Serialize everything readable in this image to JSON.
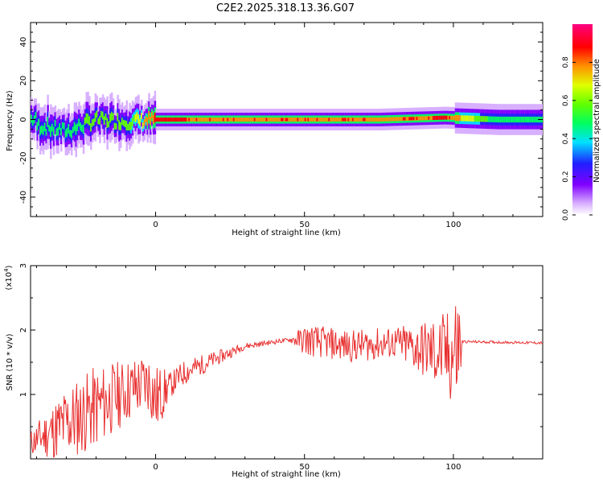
{
  "title": "C2E2.2025.318.13.36.G07",
  "chart_data": [
    {
      "type": "heatmap",
      "xlabel": "Height of straight line (km)",
      "ylabel": "Frequency (Hz)",
      "xlim": [
        -42,
        130
      ],
      "ylim": [
        -50,
        50
      ],
      "x_ticks": [
        0,
        50,
        100
      ],
      "y_ticks": [
        -40,
        -20,
        0,
        20,
        40
      ],
      "colorbar": {
        "label": "Normalized spectral amplitude",
        "range": [
          0,
          1
        ],
        "ticks": [
          "0.0",
          "0.2",
          "0.4",
          "0.6",
          "0.8"
        ],
        "colormap": "rainbow (white-violet-blue-cyan-green-yellow-orange-red-magenta)"
      },
      "description_points": [
        {
          "x": -40,
          "freq": -3,
          "amp": 0.5
        },
        {
          "x": -30,
          "freq": -6,
          "amp": 0.55
        },
        {
          "x": -20,
          "freq": 0,
          "amp": 0.6
        },
        {
          "x": -10,
          "freq": -1,
          "amp": 0.6
        },
        {
          "x": 0,
          "freq": 0,
          "amp": 0.9
        },
        {
          "x": 25,
          "freq": 0,
          "amp": 0.85
        },
        {
          "x": 50,
          "freq": 0,
          "amp": 0.85
        },
        {
          "x": 75,
          "freq": 0,
          "amp": 0.8
        },
        {
          "x": 97,
          "freq": 1,
          "amp": 0.9
        },
        {
          "x": 115,
          "freq": 0,
          "amp": 0.5
        },
        {
          "x": 130,
          "freq": 0,
          "amp": 0.5
        }
      ]
    },
    {
      "type": "line",
      "xlabel": "Height of straight line (km)",
      "ylabel": "SNR (10 * v/v)",
      "y_multiplier_label": "(x10",
      "y_multiplier_exp": "4",
      "xlim": [
        -42,
        130
      ],
      "ylim": [
        0,
        3
      ],
      "x_ticks": [
        0,
        50,
        100
      ],
      "y_ticks": [
        1,
        2,
        3
      ],
      "line_color": "#e83030",
      "series": [
        {
          "envelope": [
            {
              "x": -42,
              "mean": 0.25,
              "amp": 0.2
            },
            {
              "x": -30,
              "mean": 0.55,
              "amp": 0.6
            },
            {
              "x": -20,
              "mean": 0.8,
              "amp": 0.65
            },
            {
              "x": -10,
              "mean": 1.05,
              "amp": 0.5
            },
            {
              "x": -2,
              "mean": 1.2,
              "amp": 0.5
            },
            {
              "x": 0,
              "mean": 0.9,
              "amp": 0.6
            },
            {
              "x": 5,
              "mean": 1.15,
              "amp": 0.2
            },
            {
              "x": 10,
              "mean": 1.35,
              "amp": 0.2
            },
            {
              "x": 20,
              "mean": 1.55,
              "amp": 0.12
            },
            {
              "x": 30,
              "mean": 1.75,
              "amp": 0.05
            },
            {
              "x": 45,
              "mean": 1.85,
              "amp": 0.03
            },
            {
              "x": 50,
              "mean": 1.85,
              "amp": 0.25
            },
            {
              "x": 65,
              "mean": 1.75,
              "amp": 0.25
            },
            {
              "x": 80,
              "mean": 1.8,
              "amp": 0.25
            },
            {
              "x": 90,
              "mean": 1.7,
              "amp": 0.45
            },
            {
              "x": 98,
              "mean": 1.6,
              "amp": 0.7
            },
            {
              "x": 102,
              "mean": 1.7,
              "amp": 1.1
            },
            {
              "x": 103,
              "mean": 1.82,
              "amp": 0.02
            },
            {
              "x": 130,
              "mean": 1.8,
              "amp": 0.02
            }
          ]
        }
      ]
    }
  ]
}
